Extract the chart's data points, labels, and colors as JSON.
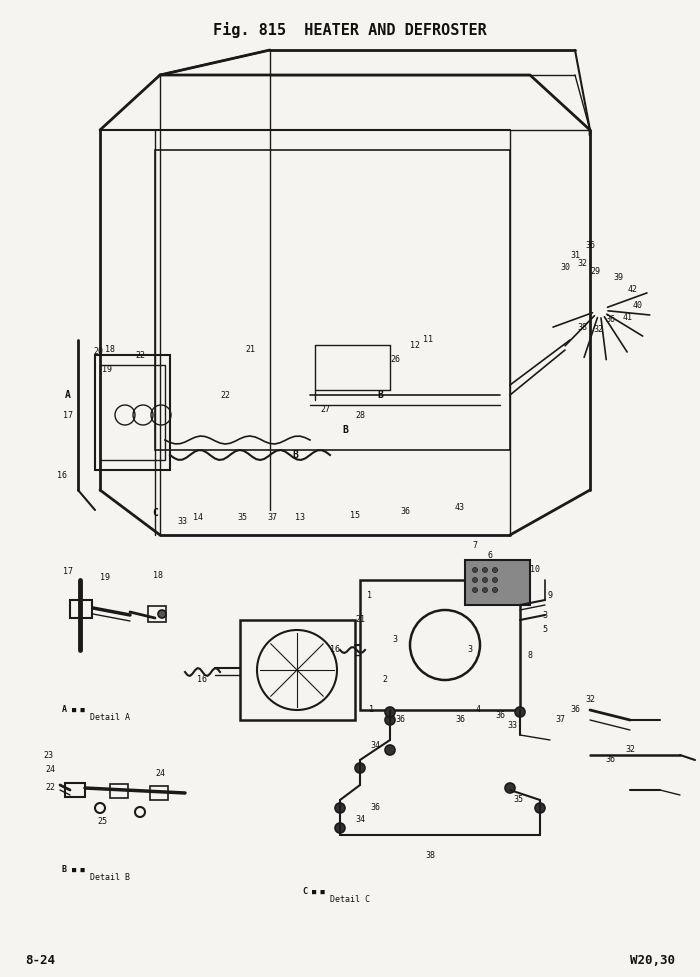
{
  "title": "Fig. 815  HEATER AND DEFROSTER",
  "footer_left": "8-24",
  "footer_right": "W20,30",
  "bg_color": "#f5f4f0",
  "title_fontsize": 11,
  "footer_fontsize": 9,
  "fig_width": 7.0,
  "fig_height": 9.77,
  "dpi": 100,
  "line_color": "#1a1a1a",
  "label_fontsize": 6.0
}
